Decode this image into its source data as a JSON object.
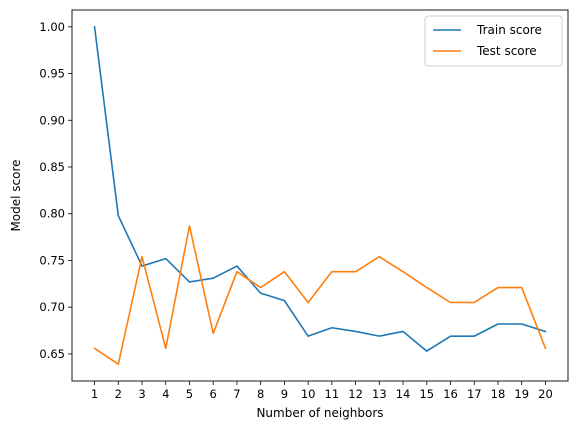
{
  "chart_data": {
    "type": "line",
    "xlabel": "Number of neighbors",
    "ylabel": "Model score",
    "x": [
      1,
      2,
      3,
      4,
      5,
      6,
      7,
      8,
      9,
      10,
      11,
      12,
      13,
      14,
      15,
      16,
      17,
      18,
      19,
      20
    ],
    "series": [
      {
        "name": "Train score",
        "color": "#1f77b4",
        "values": [
          1.0,
          0.798,
          0.744,
          0.752,
          0.727,
          0.731,
          0.744,
          0.715,
          0.707,
          0.669,
          0.678,
          0.674,
          0.669,
          0.674,
          0.653,
          0.669,
          0.669,
          0.682,
          0.682,
          0.674
        ]
      },
      {
        "name": "Test score",
        "color": "#ff7f0e",
        "values": [
          0.656,
          0.639,
          0.754,
          0.656,
          0.787,
          0.672,
          0.738,
          0.721,
          0.738,
          0.705,
          0.738,
          0.738,
          0.754,
          0.738,
          0.721,
          0.705,
          0.705,
          0.721,
          0.721,
          0.656
        ]
      }
    ],
    "xticks": [
      "1",
      "2",
      "3",
      "4",
      "5",
      "6",
      "7",
      "8",
      "9",
      "10",
      "11",
      "12",
      "13",
      "14",
      "15",
      "16",
      "17",
      "18",
      "19",
      "20"
    ],
    "yticks": [
      "0.65",
      "0.70",
      "0.75",
      "0.80",
      "0.85",
      "0.90",
      "0.95",
      "1.00"
    ],
    "xlim": [
      0.05,
      20.95
    ],
    "ylim": [
      0.621,
      1.018
    ],
    "grid": false,
    "legend": "top-right"
  }
}
